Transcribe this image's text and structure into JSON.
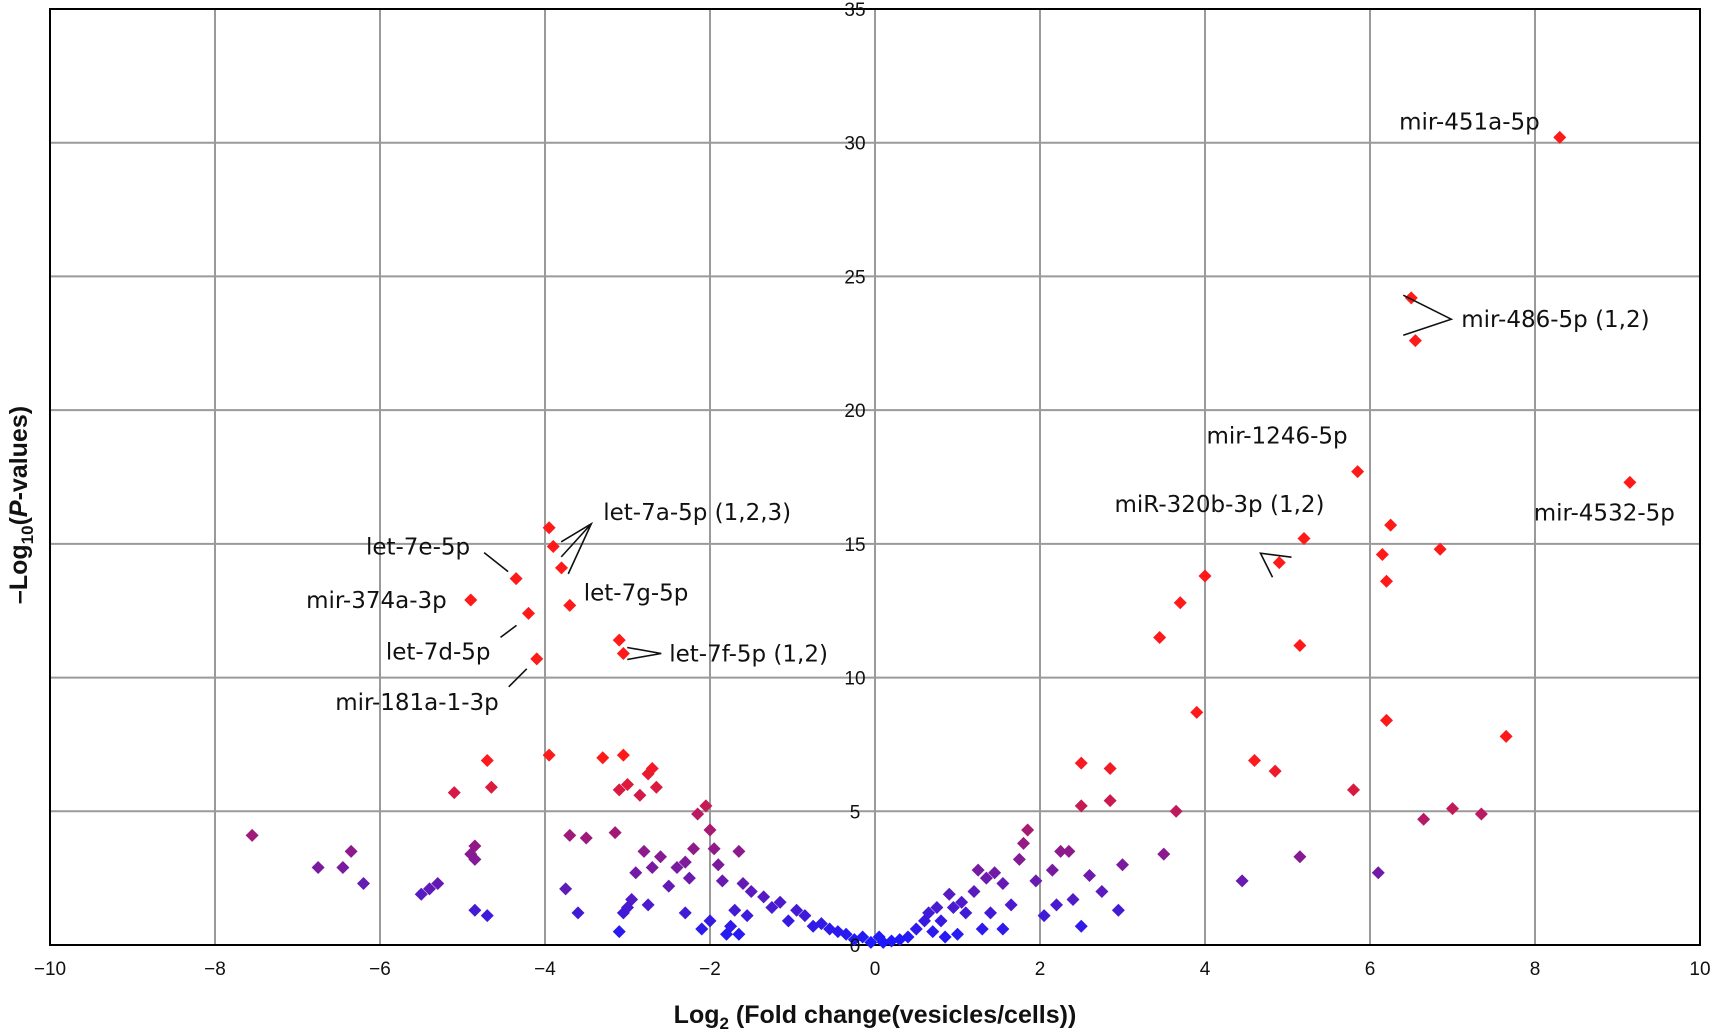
{
  "chart_data": {
    "type": "scatter",
    "title": "",
    "xlabel": "Log2 (Fold change(vesicles/cells))",
    "xlabel_parts": {
      "pre": "Log",
      "sub": "2",
      "post": " (Fold change(vesicles/cells))"
    },
    "ylabel": "–Log10(P-values)",
    "ylabel_parts": {
      "pre": "–Log",
      "sub": "10",
      "open": "(",
      "italic": "P",
      "post": "-values)"
    },
    "xlim": [
      -10,
      10
    ],
    "ylim": [
      0,
      35
    ],
    "x_ticks": [
      "−10",
      "−8",
      "−6",
      "−4",
      "−2",
      "0",
      "2",
      "4",
      "6",
      "8",
      "10"
    ],
    "y_ticks": [
      "0",
      "5",
      "10",
      "15",
      "20",
      "25",
      "30",
      "35"
    ],
    "grid": true,
    "legend": "none",
    "marker": "diamond",
    "color_scale": {
      "low": "#1a1aff",
      "high": "#ff1a1a",
      "note": "marker color from blue (low) to red (high significance)"
    },
    "annotations": [
      {
        "label": "mir-451a-5p",
        "x": 8.3,
        "y": 30.2
      },
      {
        "label": "mir-486-5p (1,2)",
        "x": 6.5,
        "y": 23.4
      },
      {
        "label": "mir-1246-5p",
        "x": 5.85,
        "y": 17.7
      },
      {
        "label": "mir-4532-5p",
        "x": 9.15,
        "y": 17.3
      },
      {
        "label": "miR-320b-3p (1,2)",
        "x": 5.0,
        "y": 14.8
      },
      {
        "label": "let-7a-5p (1,2,3)",
        "x": -3.9,
        "y": 15.0
      },
      {
        "label": "let-7e-5p",
        "x": -4.35,
        "y": 13.7
      },
      {
        "label": "mir-374a-3p",
        "x": -4.9,
        "y": 12.9
      },
      {
        "label": "let-7g-5p",
        "x": -3.7,
        "y": 12.7
      },
      {
        "label": "let-7d-5p",
        "x": -4.2,
        "y": 12.4
      },
      {
        "label": "let-7f-5p (1,2)",
        "x": -3.1,
        "y": 11.2
      },
      {
        "label": "mir-181a-1-3p",
        "x": -4.1,
        "y": 10.7
      }
    ],
    "points": [
      {
        "x": 8.3,
        "y": 30.2
      },
      {
        "x": 6.5,
        "y": 24.2
      },
      {
        "x": 6.55,
        "y": 22.6
      },
      {
        "x": 9.15,
        "y": 17.3
      },
      {
        "x": 5.85,
        "y": 17.7
      },
      {
        "x": 6.25,
        "y": 15.7
      },
      {
        "x": 5.2,
        "y": 15.2
      },
      {
        "x": 6.15,
        "y": 14.6
      },
      {
        "x": 6.85,
        "y": 14.8
      },
      {
        "x": 4.9,
        "y": 14.3
      },
      {
        "x": 6.2,
        "y": 13.6
      },
      {
        "x": 4.0,
        "y": 13.8
      },
      {
        "x": 3.7,
        "y": 12.8
      },
      {
        "x": 3.45,
        "y": 11.5
      },
      {
        "x": 5.15,
        "y": 11.2
      },
      {
        "x": 3.9,
        "y": 8.7
      },
      {
        "x": 6.2,
        "y": 8.4
      },
      {
        "x": 7.65,
        "y": 7.8
      },
      {
        "x": 4.6,
        "y": 6.9
      },
      {
        "x": 4.85,
        "y": 6.5
      },
      {
        "x": 5.8,
        "y": 5.8
      },
      {
        "x": 3.65,
        "y": 5.0
      },
      {
        "x": 7.0,
        "y": 5.1
      },
      {
        "x": 7.35,
        "y": 4.9
      },
      {
        "x": 6.65,
        "y": 4.7
      },
      {
        "x": 3.5,
        "y": 3.4
      },
      {
        "x": 5.15,
        "y": 3.3
      },
      {
        "x": 4.45,
        "y": 2.4
      },
      {
        "x": 6.1,
        "y": 2.7
      },
      {
        "x": 2.5,
        "y": 6.8
      },
      {
        "x": 2.85,
        "y": 6.6
      },
      {
        "x": 2.5,
        "y": 5.2
      },
      {
        "x": 2.85,
        "y": 5.4
      },
      {
        "x": 3.0,
        "y": 3.0
      },
      {
        "x": 2.95,
        "y": 1.3
      },
      {
        "x": 2.6,
        "y": 2.6
      },
      {
        "x": 2.5,
        "y": 0.7
      },
      {
        "x": 2.75,
        "y": 2.0
      },
      {
        "x": 2.25,
        "y": 3.5
      },
      {
        "x": 2.35,
        "y": 3.5
      },
      {
        "x": 2.2,
        "y": 1.5
      },
      {
        "x": 2.4,
        "y": 1.7
      },
      {
        "x": 2.15,
        "y": 2.8
      },
      {
        "x": 1.95,
        "y": 2.4
      },
      {
        "x": 2.05,
        "y": 1.1
      },
      {
        "x": 1.85,
        "y": 4.3
      },
      {
        "x": 1.8,
        "y": 3.8
      },
      {
        "x": 1.75,
        "y": 3.2
      },
      {
        "x": 1.65,
        "y": 1.5
      },
      {
        "x": 1.55,
        "y": 2.3
      },
      {
        "x": 1.45,
        "y": 2.7
      },
      {
        "x": 1.35,
        "y": 2.5
      },
      {
        "x": 1.25,
        "y": 2.8
      },
      {
        "x": 1.2,
        "y": 2.0
      },
      {
        "x": 1.4,
        "y": 1.2
      },
      {
        "x": 1.55,
        "y": 0.6
      },
      {
        "x": 1.05,
        "y": 1.6
      },
      {
        "x": 1.1,
        "y": 1.2
      },
      {
        "x": 0.95,
        "y": 1.4
      },
      {
        "x": 0.9,
        "y": 1.9
      },
      {
        "x": 0.8,
        "y": 0.9
      },
      {
        "x": 0.7,
        "y": 0.5
      },
      {
        "x": 0.6,
        "y": 0.9
      },
      {
        "x": 0.5,
        "y": 0.6
      },
      {
        "x": 0.4,
        "y": 0.3
      },
      {
        "x": 0.3,
        "y": 0.2
      },
      {
        "x": 0.2,
        "y": 0.15
      },
      {
        "x": 0.1,
        "y": 0.1
      },
      {
        "x": 0.05,
        "y": 0.3
      },
      {
        "x": 0.85,
        "y": 0.3
      },
      {
        "x": 1.3,
        "y": 0.6
      },
      {
        "x": 1.0,
        "y": 0.4
      },
      {
        "x": 0.65,
        "y": 1.2
      },
      {
        "x": 0.75,
        "y": 1.4
      },
      {
        "x": -0.05,
        "y": 0.1
      },
      {
        "x": -0.15,
        "y": 0.3
      },
      {
        "x": -0.25,
        "y": 0.2
      },
      {
        "x": -0.35,
        "y": 0.4
      },
      {
        "x": -0.45,
        "y": 0.5
      },
      {
        "x": -0.55,
        "y": 0.6
      },
      {
        "x": -0.65,
        "y": 0.8
      },
      {
        "x": -0.75,
        "y": 0.7
      },
      {
        "x": -0.85,
        "y": 1.1
      },
      {
        "x": -0.95,
        "y": 1.3
      },
      {
        "x": -1.05,
        "y": 0.9
      },
      {
        "x": -1.15,
        "y": 1.6
      },
      {
        "x": -1.25,
        "y": 1.4
      },
      {
        "x": -1.35,
        "y": 1.8
      },
      {
        "x": -1.5,
        "y": 2.0
      },
      {
        "x": -1.6,
        "y": 2.3
      },
      {
        "x": -1.7,
        "y": 1.3
      },
      {
        "x": -1.85,
        "y": 2.4
      },
      {
        "x": -1.75,
        "y": 0.7
      },
      {
        "x": -1.65,
        "y": 0.4
      },
      {
        "x": -1.9,
        "y": 3.0
      },
      {
        "x": -1.95,
        "y": 3.6
      },
      {
        "x": -2.0,
        "y": 4.3
      },
      {
        "x": -2.15,
        "y": 4.9
      },
      {
        "x": -2.05,
        "y": 5.2
      },
      {
        "x": -1.65,
        "y": 3.5
      },
      {
        "x": -2.2,
        "y": 3.6
      },
      {
        "x": -2.3,
        "y": 3.1
      },
      {
        "x": -2.25,
        "y": 2.5
      },
      {
        "x": -2.4,
        "y": 2.9
      },
      {
        "x": -2.5,
        "y": 2.2
      },
      {
        "x": -2.6,
        "y": 3.3
      },
      {
        "x": -2.7,
        "y": 2.9
      },
      {
        "x": -2.8,
        "y": 3.5
      },
      {
        "x": -2.9,
        "y": 2.7
      },
      {
        "x": -2.95,
        "y": 1.7
      },
      {
        "x": -3.0,
        "y": 1.4
      },
      {
        "x": -3.1,
        "y": 0.5
      },
      {
        "x": -3.05,
        "y": 1.2
      },
      {
        "x": -2.75,
        "y": 1.5
      },
      {
        "x": -2.3,
        "y": 1.2
      },
      {
        "x": -2.1,
        "y": 0.6
      },
      {
        "x": -2.0,
        "y": 0.9
      },
      {
        "x": -1.8,
        "y": 0.4
      },
      {
        "x": -1.55,
        "y": 1.1
      },
      {
        "x": -2.7,
        "y": 6.6
      },
      {
        "x": -2.75,
        "y": 6.4
      },
      {
        "x": -2.65,
        "y": 5.9
      },
      {
        "x": -2.85,
        "y": 5.6
      },
      {
        "x": -3.0,
        "y": 6.0
      },
      {
        "x": -3.1,
        "y": 5.8
      },
      {
        "x": -3.05,
        "y": 7.1
      },
      {
        "x": -3.3,
        "y": 7.0
      },
      {
        "x": -3.95,
        "y": 7.1
      },
      {
        "x": -3.15,
        "y": 4.2
      },
      {
        "x": -3.5,
        "y": 4.0
      },
      {
        "x": -3.7,
        "y": 4.1
      },
      {
        "x": -3.75,
        "y": 2.1
      },
      {
        "x": -3.6,
        "y": 1.2
      },
      {
        "x": -4.7,
        "y": 6.9
      },
      {
        "x": -4.65,
        "y": 5.9
      },
      {
        "x": -5.1,
        "y": 5.7
      },
      {
        "x": -4.85,
        "y": 3.7
      },
      {
        "x": -4.9,
        "y": 3.4
      },
      {
        "x": -4.85,
        "y": 3.2
      },
      {
        "x": -4.85,
        "y": 1.3
      },
      {
        "x": -4.7,
        "y": 1.1
      },
      {
        "x": -5.3,
        "y": 2.3
      },
      {
        "x": -5.4,
        "y": 2.1
      },
      {
        "x": -5.5,
        "y": 1.9
      },
      {
        "x": -6.2,
        "y": 2.3
      },
      {
        "x": -6.35,
        "y": 3.5
      },
      {
        "x": -6.45,
        "y": 2.9
      },
      {
        "x": -6.75,
        "y": 2.9
      },
      {
        "x": -7.55,
        "y": 4.1
      },
      {
        "x": -3.95,
        "y": 15.6
      },
      {
        "x": -3.9,
        "y": 14.9
      },
      {
        "x": -3.8,
        "y": 14.1
      },
      {
        "x": -4.35,
        "y": 13.7
      },
      {
        "x": -4.9,
        "y": 12.9
      },
      {
        "x": -3.7,
        "y": 12.7
      },
      {
        "x": -4.2,
        "y": 12.4
      },
      {
        "x": -3.1,
        "y": 11.4
      },
      {
        "x": -3.05,
        "y": 10.9
      },
      {
        "x": -4.1,
        "y": 10.7
      }
    ]
  }
}
